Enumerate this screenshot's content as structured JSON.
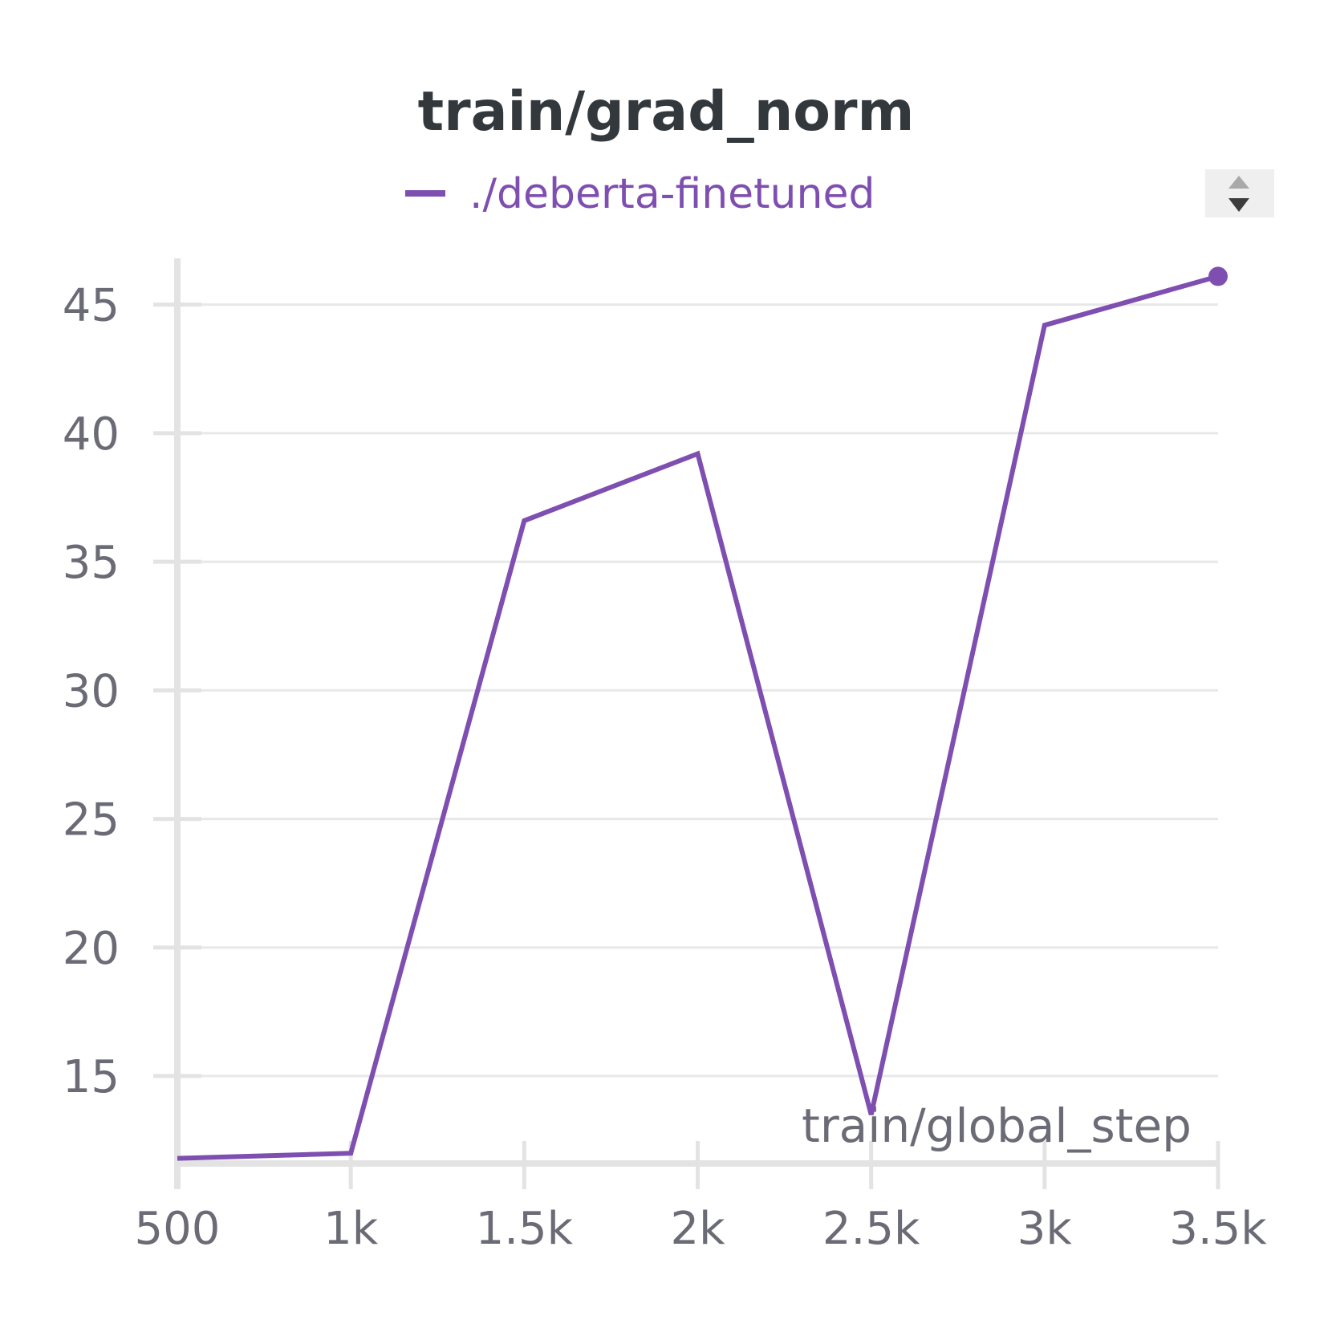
{
  "chart_data": {
    "type": "line",
    "title": "train/grad_norm",
    "xlabel": "train/global_step",
    "ylabel": "",
    "xlim": [
      500,
      3500
    ],
    "ylim": [
      11.6,
      46.8
    ],
    "xticks": [
      {
        "value": 500,
        "label": "500"
      },
      {
        "value": 1000,
        "label": "1k"
      },
      {
        "value": 1500,
        "label": "1.5k"
      },
      {
        "value": 2000,
        "label": "2k"
      },
      {
        "value": 2500,
        "label": "2.5k"
      },
      {
        "value": 3000,
        "label": "3k"
      },
      {
        "value": 3500,
        "label": "3.5k"
      }
    ],
    "yticks": [
      {
        "value": 15,
        "label": "15"
      },
      {
        "value": 20,
        "label": "20"
      },
      {
        "value": 25,
        "label": "25"
      },
      {
        "value": 30,
        "label": "30"
      },
      {
        "value": 35,
        "label": "35"
      },
      {
        "value": 40,
        "label": "40"
      },
      {
        "value": 45,
        "label": "45"
      }
    ],
    "grid": true,
    "legend_position": "top-center",
    "series": [
      {
        "name": "./deberta-finetuned",
        "color": "#7e4fb0",
        "x": [
          500,
          1000,
          1500,
          2000,
          2500,
          3000,
          3500
        ],
        "y": [
          11.8,
          12.0,
          36.6,
          39.2,
          13.5,
          44.2,
          46.1
        ]
      }
    ]
  },
  "controls": {
    "sort_icon": "sort-up-down-icon"
  }
}
